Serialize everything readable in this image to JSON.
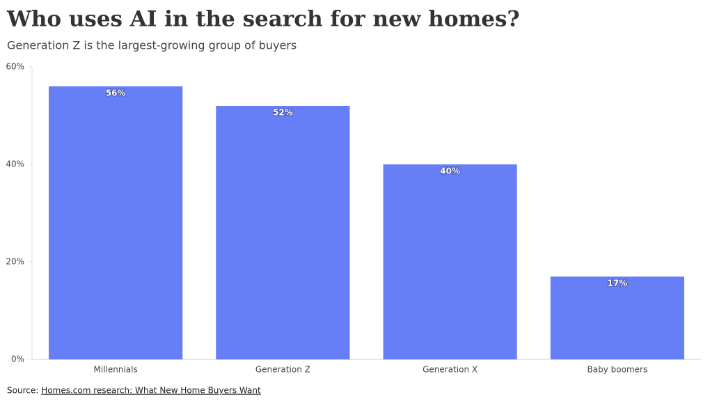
{
  "chart_data": {
    "type": "bar",
    "title": "Who uses AI in the search for new homes?",
    "subtitle": "Generation Z is the largest-growing group of buyers",
    "categories": [
      "Millennials",
      "Generation Z",
      "Generation X",
      "Baby boomers"
    ],
    "values": [
      56,
      52,
      40,
      17
    ],
    "value_labels": [
      "56%",
      "52%",
      "40%",
      "17%"
    ],
    "color": "#667ef6",
    "ylim": [
      0,
      60
    ],
    "yticks": [
      {
        "value": 0,
        "label": "0%"
      },
      {
        "value": 20,
        "label": "20%"
      },
      {
        "value": 40,
        "label": "40%"
      },
      {
        "value": 60,
        "label": "60%"
      }
    ],
    "grid": false,
    "source_label": "Source:",
    "source_text": "Homes.com research: What New Home Buyers Want"
  }
}
